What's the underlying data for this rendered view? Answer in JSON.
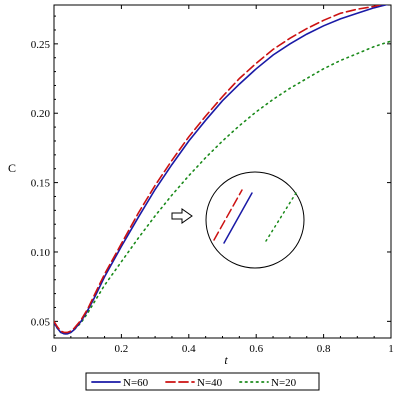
{
  "chart_data": {
    "type": "line",
    "title": "",
    "xlabel": "t",
    "ylabel": "C",
    "xlim": [
      0,
      1
    ],
    "ylim": [
      0.038,
      0.278
    ],
    "xticks": [
      0,
      0.2,
      0.4,
      0.6,
      0.8,
      1
    ],
    "xtick_labels": [
      "0",
      "0.2",
      "0.4",
      "0.6",
      "0.8",
      "1"
    ],
    "yticks": [
      0.05,
      0.1,
      0.15,
      0.2,
      0.25
    ],
    "ytick_labels": [
      "0.05",
      "0.10",
      "0.15",
      "0.20",
      "0.25"
    ],
    "grid": false,
    "legend_position": "bottom",
    "series": [
      {
        "name": "N=60",
        "color": "#1a1aa6",
        "style": "solid",
        "x": [
          0,
          0.01,
          0.02,
          0.03,
          0.04,
          0.05,
          0.06,
          0.08,
          0.1,
          0.12,
          0.15,
          0.2,
          0.25,
          0.3,
          0.35,
          0.4,
          0.45,
          0.5,
          0.55,
          0.6,
          0.65,
          0.7,
          0.75,
          0.8,
          0.85,
          0.9,
          0.95,
          1.0
        ],
        "y": [
          0.049,
          0.045,
          0.042,
          0.041,
          0.041,
          0.042,
          0.044,
          0.05,
          0.058,
          0.067,
          0.082,
          0.104,
          0.125,
          0.145,
          0.163,
          0.18,
          0.195,
          0.209,
          0.221,
          0.232,
          0.242,
          0.25,
          0.257,
          0.263,
          0.268,
          0.272,
          0.276,
          0.279
        ]
      },
      {
        "name": "N=40",
        "color": "#cc1111",
        "style": "dashed",
        "x": [
          0,
          0.01,
          0.02,
          0.03,
          0.04,
          0.05,
          0.06,
          0.08,
          0.1,
          0.12,
          0.15,
          0.2,
          0.25,
          0.3,
          0.35,
          0.4,
          0.45,
          0.5,
          0.55,
          0.6,
          0.65,
          0.7,
          0.75,
          0.8,
          0.85,
          0.9,
          0.95,
          0.98
        ],
        "y": [
          0.05,
          0.046,
          0.043,
          0.042,
          0.042,
          0.043,
          0.045,
          0.051,
          0.059,
          0.069,
          0.084,
          0.106,
          0.128,
          0.148,
          0.166,
          0.183,
          0.198,
          0.212,
          0.225,
          0.236,
          0.246,
          0.254,
          0.261,
          0.267,
          0.272,
          0.275,
          0.277,
          0.279
        ]
      },
      {
        "name": "N=20",
        "color": "#1a8a1a",
        "style": "dotted",
        "x": [
          0,
          0.01,
          0.02,
          0.03,
          0.04,
          0.05,
          0.06,
          0.08,
          0.1,
          0.12,
          0.15,
          0.2,
          0.25,
          0.3,
          0.35,
          0.4,
          0.45,
          0.5,
          0.55,
          0.6,
          0.65,
          0.7,
          0.75,
          0.8,
          0.85,
          0.9,
          0.95,
          1.0
        ],
        "y": [
          0.049,
          0.045,
          0.042,
          0.041,
          0.041,
          0.042,
          0.044,
          0.049,
          0.056,
          0.064,
          0.076,
          0.093,
          0.11,
          0.126,
          0.141,
          0.155,
          0.168,
          0.18,
          0.191,
          0.201,
          0.21,
          0.218,
          0.225,
          0.232,
          0.238,
          0.243,
          0.248,
          0.252
        ]
      }
    ],
    "annotations": [
      {
        "type": "zoom-inset",
        "shape": "circle",
        "arrow": "right"
      }
    ]
  }
}
